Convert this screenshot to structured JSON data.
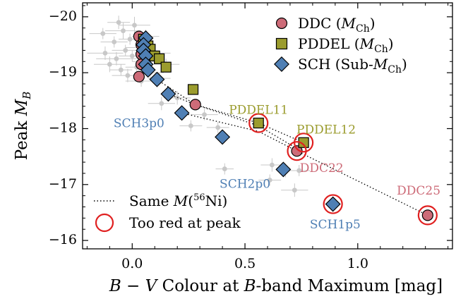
{
  "chart_data": {
    "type": "scatter",
    "xlabel": "B − V Colour at B-band Maximum [mag]",
    "ylabel": "Peak M_B",
    "xlim": [
      -0.22,
      1.42
    ],
    "ylim": [
      -15.85,
      -20.25
    ],
    "x_ticks": [
      0.0,
      0.5,
      1.0
    ],
    "y_ticks": [
      -20,
      -19,
      -18,
      -17,
      -16
    ],
    "x_tick_labels": [
      "0.0",
      "0.5",
      "1.0"
    ],
    "y_tick_labels": [
      "−20",
      "−19",
      "−18",
      "−17",
      "−16"
    ],
    "grid": false,
    "legend_placement": "top-right",
    "legend_items": [
      {
        "key": "DDC",
        "label": "DDC (",
        "math": "M",
        "sub": "Ch",
        "close": ")"
      },
      {
        "key": "PDDEL",
        "label": "PDDEL (",
        "math": "M",
        "sub": "Ch",
        "close": ")"
      },
      {
        "key": "SCH",
        "label": "SCH (Sub-",
        "math": "M",
        "sub": "Ch",
        "close": ")"
      }
    ],
    "legend2_items": {
      "same_ni": "Same M(⁵⁶Ni)",
      "too_red": "Too red at peak"
    },
    "colors": {
      "DDC": "#cd6b78",
      "PDDEL": "#9b9c2e",
      "SCH": "#4f7fb4",
      "obs": "#c8c8c8",
      "circle": "#e02020"
    },
    "observed": [
      {
        "x": -0.12,
        "y": -19.35,
        "xe": 0.08,
        "ye": 0.12
      },
      {
        "x": -0.1,
        "y": -19.15,
        "xe": 0.07,
        "ye": 0.14
      },
      {
        "x": -0.08,
        "y": -19.55,
        "xe": 0.06,
        "ye": 0.1
      },
      {
        "x": -0.07,
        "y": -19.25,
        "xe": 0.09,
        "ye": 0.12
      },
      {
        "x": -0.05,
        "y": -19.05,
        "xe": 0.05,
        "ye": 0.1
      },
      {
        "x": -0.04,
        "y": -19.75,
        "xe": 0.08,
        "ye": 0.15
      },
      {
        "x": -0.03,
        "y": -19.4,
        "xe": 0.06,
        "ye": 0.1
      },
      {
        "x": -0.02,
        "y": -18.95,
        "xe": 0.07,
        "ye": 0.12
      },
      {
        "x": -0.01,
        "y": -19.6,
        "xe": 0.05,
        "ye": 0.1
      },
      {
        "x": 0.0,
        "y": -19.3,
        "xe": 0.06,
        "ye": 0.1
      },
      {
        "x": 0.01,
        "y": -19.85,
        "xe": 0.07,
        "ye": 0.15
      },
      {
        "x": 0.02,
        "y": -19.1,
        "xe": 0.05,
        "ye": 0.1
      },
      {
        "x": 0.03,
        "y": -19.45,
        "xe": 0.06,
        "ye": 0.12
      },
      {
        "x": 0.04,
        "y": -18.85,
        "xe": 0.07,
        "ye": 0.1
      },
      {
        "x": 0.05,
        "y": -19.2,
        "xe": 0.05,
        "ye": 0.1
      },
      {
        "x": 0.06,
        "y": -19.65,
        "xe": 0.06,
        "ye": 0.12
      },
      {
        "x": 0.08,
        "y": -19.0,
        "xe": 0.06,
        "ye": 0.1
      },
      {
        "x": 0.1,
        "y": -19.35,
        "xe": 0.07,
        "ye": 0.12
      },
      {
        "x": 0.12,
        "y": -18.9,
        "xe": 0.05,
        "ye": 0.1
      },
      {
        "x": 0.15,
        "y": -19.15,
        "xe": 0.06,
        "ye": 0.1
      },
      {
        "x": -0.06,
        "y": -19.9,
        "xe": 0.05,
        "ye": 0.12
      },
      {
        "x": -0.13,
        "y": -19.7,
        "xe": 0.06,
        "ye": 0.1
      },
      {
        "x": 0.13,
        "y": -18.45,
        "xe": 0.06,
        "ye": 0.12
      },
      {
        "x": 0.2,
        "y": -18.55,
        "xe": 0.06,
        "ye": 0.12
      },
      {
        "x": 0.26,
        "y": -18.05,
        "xe": 0.05,
        "ye": 0.1
      },
      {
        "x": 0.32,
        "y": -18.25,
        "xe": 0.06,
        "ye": 0.1
      },
      {
        "x": 0.38,
        "y": -18.02,
        "xe": 0.05,
        "ye": 0.1
      },
      {
        "x": 0.41,
        "y": -17.28,
        "xe": 0.04,
        "ye": 0.1
      },
      {
        "x": 0.62,
        "y": -17.35,
        "xe": 0.05,
        "ye": 0.12
      },
      {
        "x": 0.61,
        "y": -17.08,
        "xe": 0.05,
        "ye": 0.1
      },
      {
        "x": 0.68,
        "y": -17.25,
        "xe": 0.04,
        "ye": 0.12
      },
      {
        "x": 0.72,
        "y": -16.9,
        "xe": 0.06,
        "ye": 0.12
      },
      {
        "x": 0.74,
        "y": -17.25,
        "xe": 0.05,
        "ye": 0.1
      }
    ],
    "series": [
      {
        "name": "DDC",
        "marker": "circle",
        "points": [
          [
            0.03,
            -19.65
          ],
          [
            0.04,
            -19.5
          ],
          [
            0.04,
            -19.33
          ],
          [
            0.04,
            -19.15
          ],
          [
            0.03,
            -18.93
          ],
          [
            0.28,
            -18.43
          ],
          [
            0.73,
            -17.6
          ],
          [
            1.31,
            -16.45
          ]
        ]
      },
      {
        "name": "PDDEL",
        "marker": "square",
        "points": [
          [
            0.05,
            -19.6
          ],
          [
            0.07,
            -19.48
          ],
          [
            0.08,
            -19.42
          ],
          [
            0.1,
            -19.3
          ],
          [
            0.12,
            -19.25
          ],
          [
            0.15,
            -19.1
          ],
          [
            0.27,
            -18.7
          ],
          [
            0.56,
            -18.1
          ],
          [
            0.76,
            -17.75
          ]
        ]
      },
      {
        "name": "SCH",
        "marker": "diamond",
        "points": [
          [
            0.06,
            -19.62
          ],
          [
            0.05,
            -19.5
          ],
          [
            0.05,
            -19.4
          ],
          [
            0.06,
            -19.3
          ],
          [
            0.06,
            -19.15
          ],
          [
            0.07,
            -19.05
          ],
          [
            0.11,
            -18.88
          ],
          [
            0.16,
            -18.62
          ],
          [
            0.22,
            -18.28
          ],
          [
            0.4,
            -17.85
          ],
          [
            0.67,
            -17.27
          ],
          [
            0.89,
            -16.65
          ]
        ]
      }
    ],
    "same_ni_lines": [
      [
        [
          0.12,
          -18.85
        ],
        [
          0.28,
          -18.43
        ],
        [
          0.56,
          -18.1
        ],
        [
          0.76,
          -17.75
        ]
      ],
      [
        [
          0.16,
          -18.62
        ],
        [
          0.28,
          -18.43
        ],
        [
          0.56,
          -18.05
        ],
        [
          0.74,
          -17.62
        ]
      ],
      [
        [
          0.22,
          -18.28
        ],
        [
          0.56,
          -17.95
        ],
        [
          0.73,
          -17.6
        ],
        [
          1.31,
          -16.45
        ]
      ]
    ],
    "too_red": [
      [
        0.56,
        -18.1
      ],
      [
        0.76,
        -17.75
      ],
      [
        0.73,
        -17.6
      ],
      [
        0.89,
        -16.65
      ],
      [
        1.31,
        -16.45
      ]
    ],
    "annotations": [
      {
        "text": "PDDEL11",
        "x": 0.56,
        "y": -18.32,
        "series": "PDDEL"
      },
      {
        "text": "PDDEL12",
        "x": 0.86,
        "y": -17.97,
        "series": "PDDEL"
      },
      {
        "text": "DDC22",
        "x": 0.84,
        "y": -17.28,
        "series": "DDC"
      },
      {
        "text": "DDC25",
        "x": 1.27,
        "y": -16.88,
        "series": "DDC"
      },
      {
        "text": "SCH3p0",
        "x": 0.03,
        "y": -18.08,
        "series": "SCH"
      },
      {
        "text": "SCH2p0",
        "x": 0.5,
        "y": -17.0,
        "series": "SCH"
      },
      {
        "text": "SCH1p5",
        "x": 0.9,
        "y": -16.27,
        "series": "SCH"
      }
    ]
  }
}
